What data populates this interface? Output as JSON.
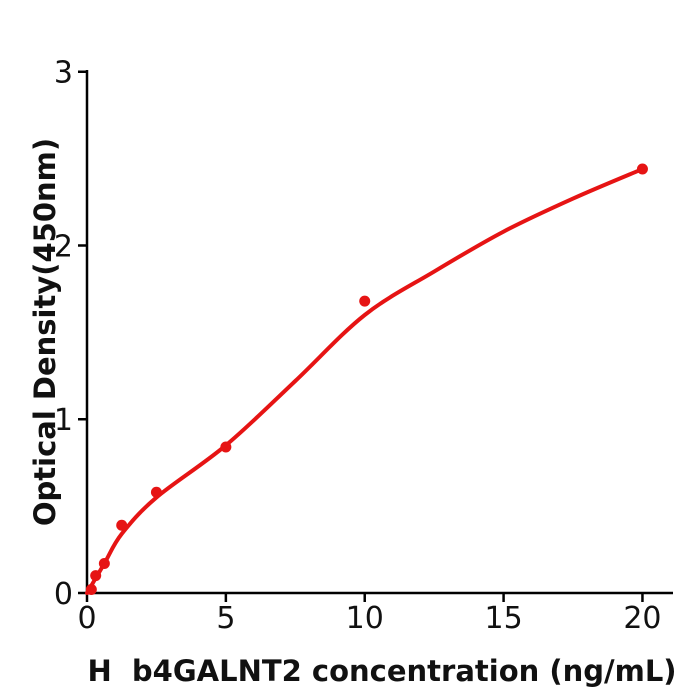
{
  "chart_data": {
    "type": "scatter",
    "title": "",
    "xlabel": "H  b4GALNT2 concentration (ng/mL)",
    "ylabel": "Optical Density(450nm)",
    "xlim": [
      0,
      21.1
    ],
    "ylim": [
      0,
      3.01
    ],
    "x_ticks": [
      0,
      5,
      10,
      15,
      20
    ],
    "y_ticks": [
      0,
      1,
      2,
      3
    ],
    "grid": false,
    "legend": "none",
    "marker_color": "#e61414",
    "line_color": "#e61414",
    "axis_color": "#000000",
    "points": [
      {
        "x": 0.156,
        "y": 0.02
      },
      {
        "x": 0.313,
        "y": 0.1
      },
      {
        "x": 0.625,
        "y": 0.17
      },
      {
        "x": 1.25,
        "y": 0.39
      },
      {
        "x": 2.5,
        "y": 0.58
      },
      {
        "x": 5,
        "y": 0.84
      },
      {
        "x": 10,
        "y": 1.68
      },
      {
        "x": 20,
        "y": 2.44
      }
    ],
    "fit_curve": [
      {
        "x": 0,
        "y": 0.0
      },
      {
        "x": 0.625,
        "y": 0.17
      },
      {
        "x": 1.25,
        "y": 0.34
      },
      {
        "x": 2.5,
        "y": 0.55
      },
      {
        "x": 5,
        "y": 0.85
      },
      {
        "x": 7.5,
        "y": 1.22
      },
      {
        "x": 10,
        "y": 1.6
      },
      {
        "x": 12.5,
        "y": 1.85
      },
      {
        "x": 15,
        "y": 2.08
      },
      {
        "x": 17.5,
        "y": 2.27
      },
      {
        "x": 20,
        "y": 2.44
      }
    ]
  }
}
